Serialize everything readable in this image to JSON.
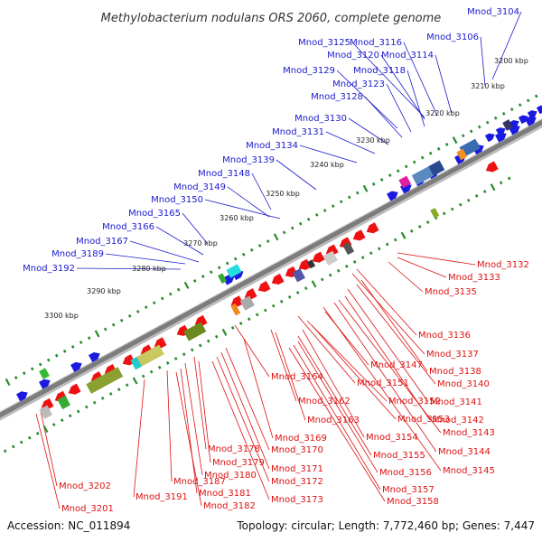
{
  "title": "Methylobacterium nodulans ORS 2060, complete genome",
  "accession": "Accession: NC_011894",
  "topology": "Topology: circular; Length: 7,772,460 bp; Genes: 7,447",
  "colors": {
    "forward_label": "#1a1acc",
    "reverse_label": "#dd1111",
    "backbone": "#808080",
    "tick": "#2a8a2a"
  },
  "kbp_ticks": [
    "3200 kbp",
    "3210 kbp",
    "3220 kbp",
    "3230 kbp",
    "3240 kbp",
    "3250 kbp",
    "3260 kbp",
    "3270 kbp",
    "3280 kbp",
    "3290 kbp",
    "3300 kbp"
  ],
  "top_labels": [
    "Mnod_3104",
    "Mnod_3106",
    "Mnod_3125",
    "Mnod_3116",
    "Mnod_3120",
    "Mnod_3114",
    "Mnod_3129",
    "Mnod_3118",
    "Mnod_3123",
    "Mnod_3128",
    "Mnod_3130",
    "Mnod_3131",
    "Mnod_3134",
    "Mnod_3139",
    "Mnod_3148",
    "Mnod_3149",
    "Mnod_3150",
    "Mnod_3165",
    "Mnod_3166",
    "Mnod_3167",
    "Mnod_3189",
    "Mnod_3192"
  ],
  "right_labels": [
    "Mnod_3132",
    "Mnod_3133",
    "Mnod_3135",
    "Mnod_3136",
    "Mnod_3137",
    "Mnod_3138",
    "Mnod_3140",
    "Mnod_3141",
    "Mnod_3142",
    "Mnod_3143",
    "Mnod_3144",
    "Mnod_3145"
  ],
  "bottom_labels": [
    "Mnod_3147",
    "Mnod_3164",
    "Mnod_3151",
    "Mnod_3152",
    "Mnod_3162",
    "Mnod_3153",
    "Mnod_3163",
    "Mnod_3154",
    "Mnod_3169",
    "Mnod_3155",
    "Mnod_3178",
    "Mnod_3170",
    "Mnod_3179",
    "Mnod_3156",
    "Mnod_3171",
    "Mnod_3180",
    "Mnod_3172",
    "Mnod_3157",
    "Mnod_3187",
    "Mnod_3181",
    "Mnod_3173",
    "Mnod_3158",
    "Mnod_3202",
    "Mnod_3191",
    "Mnod_3182",
    "Mnod_3201"
  ]
}
